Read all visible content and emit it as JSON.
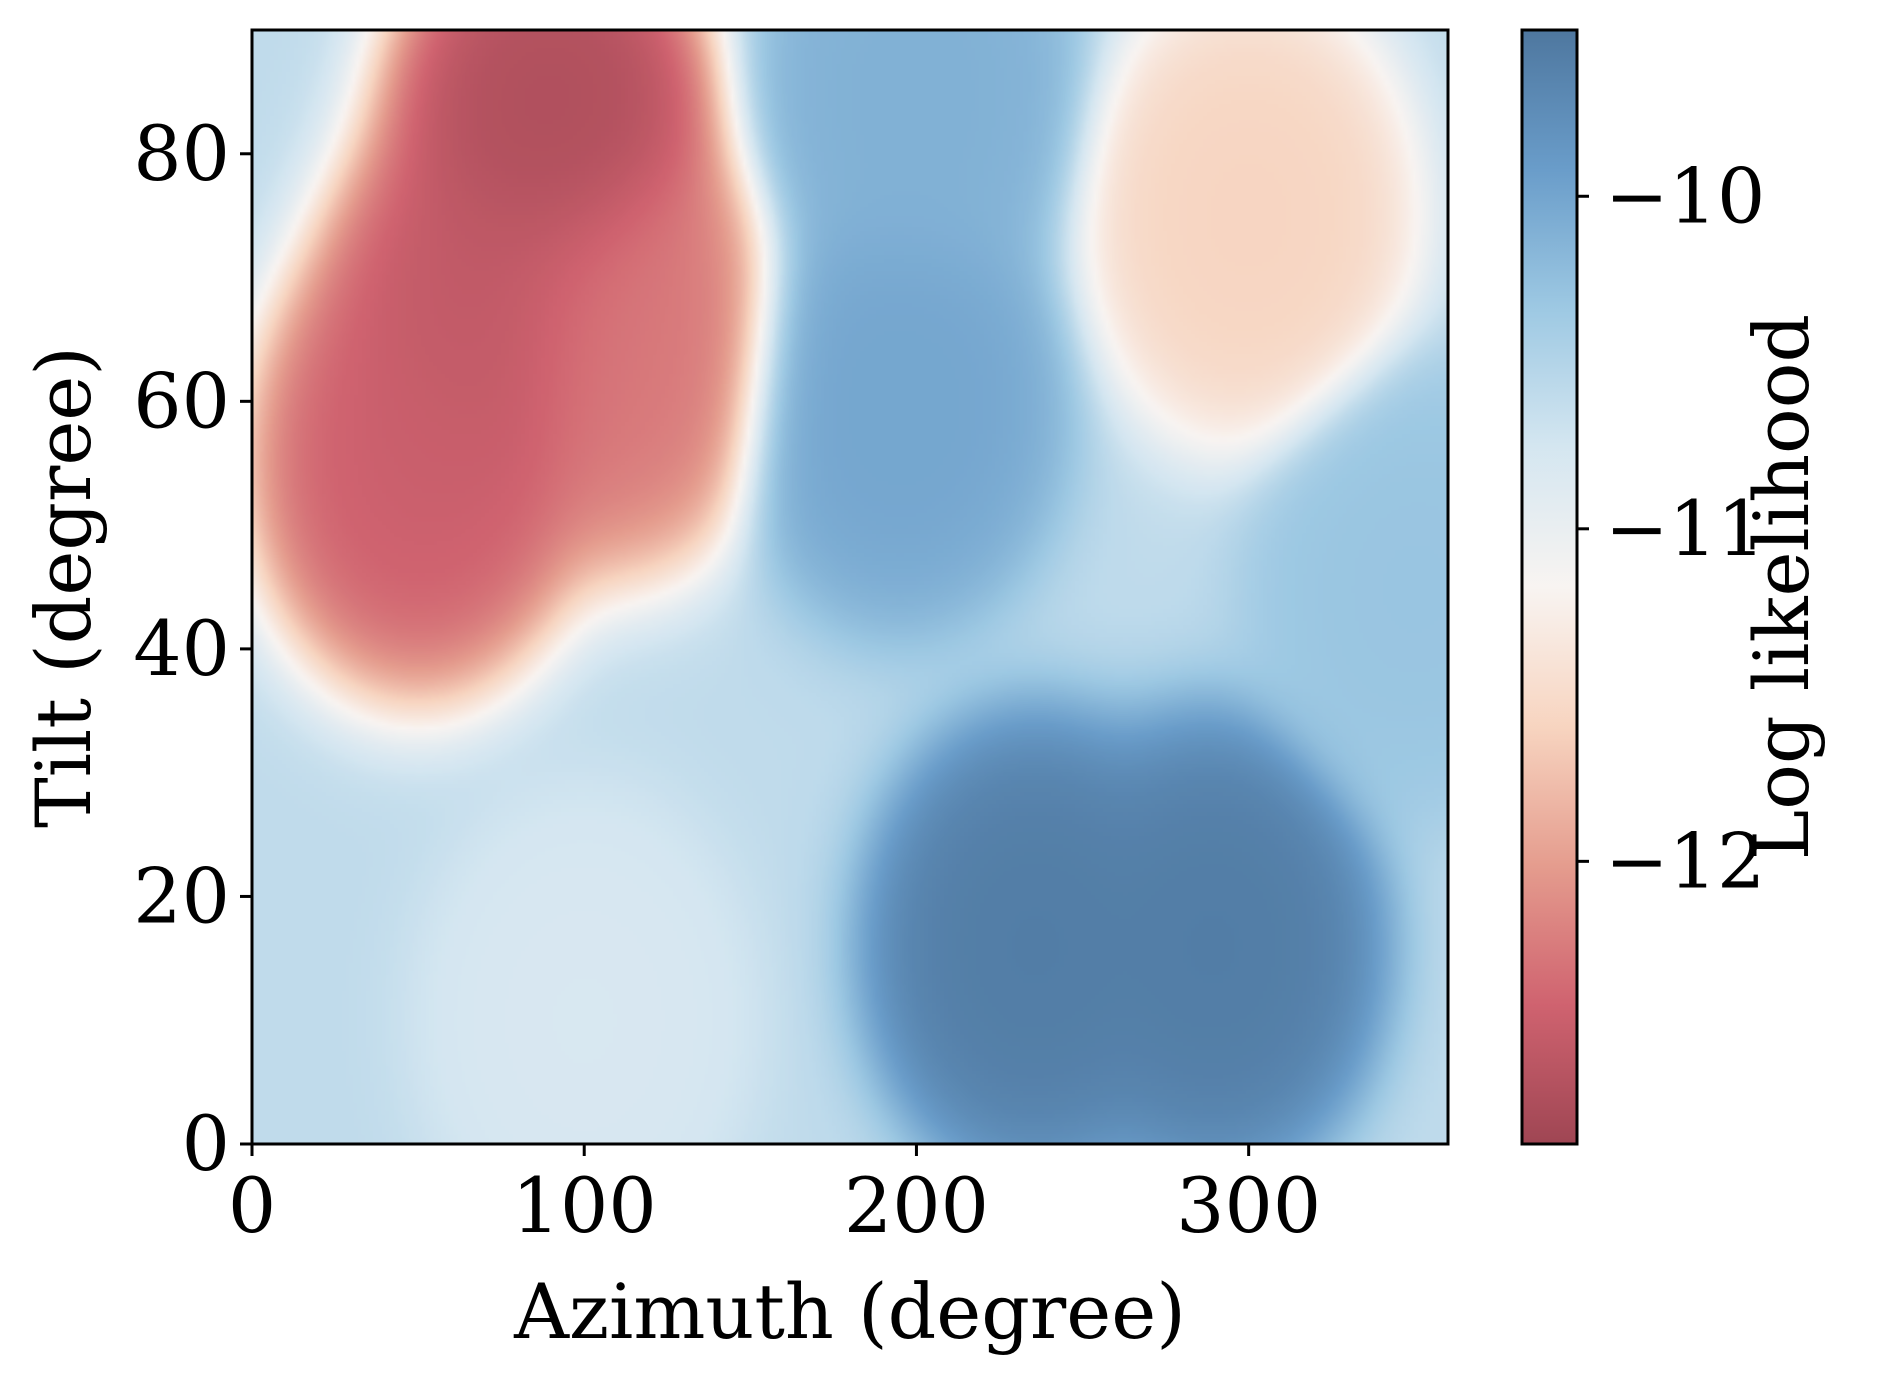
{
  "chart_data": {
    "type": "heatmap",
    "xlabel": "Azimuth (degree)",
    "ylabel": "Tilt (degree)",
    "xlim": [
      0,
      360
    ],
    "ylim": [
      0,
      90
    ],
    "xticks": [
      {
        "value": 0,
        "label": "0"
      },
      {
        "value": 100,
        "label": "100"
      },
      {
        "value": 200,
        "label": "200"
      },
      {
        "value": 300,
        "label": "300"
      }
    ],
    "yticks": [
      {
        "value": 0,
        "label": "0"
      },
      {
        "value": 20,
        "label": "20"
      },
      {
        "value": 40,
        "label": "40"
      },
      {
        "value": 60,
        "label": "60"
      },
      {
        "value": 80,
        "label": "80"
      }
    ],
    "colorbar": {
      "label": "Log likelihood",
      "range": [
        -12.85,
        -9.5
      ],
      "colormap": "RdBu",
      "ticks": [
        {
          "value": -10,
          "label": "−10"
        },
        {
          "value": -11,
          "label": "−11"
        },
        {
          "value": -12,
          "label": "−12"
        }
      ],
      "colors": [
        "#8e2535",
        "#c74756",
        "#e08b7a",
        "#f6cdb5",
        "#f7f2ef",
        "#cde2ee",
        "#8cbfde",
        "#4f8bc0",
        "#2f5f8e"
      ]
    },
    "hotspots": [
      {
        "azimuth": 235,
        "tilt": 16,
        "value": -9.55
      },
      {
        "azimuth": 290,
        "tilt": 16,
        "value": -9.55
      },
      {
        "azimuth": 195,
        "tilt": 60,
        "value": -10.0
      },
      {
        "azimuth": 200,
        "tilt": 85,
        "value": -10.1
      },
      {
        "azimuth": 350,
        "tilt": 45,
        "value": -10.3
      },
      {
        "azimuth": 90,
        "tilt": 82,
        "value": -12.75
      },
      {
        "azimuth": 70,
        "tilt": 66,
        "value": -12.6
      },
      {
        "azimuth": 50,
        "tilt": 55,
        "value": -12.5
      },
      {
        "azimuth": 110,
        "tilt": 65,
        "value": -12.3
      },
      {
        "azimuth": 300,
        "tilt": 75,
        "value": -11.6
      },
      {
        "azimuth": 100,
        "tilt": 10,
        "value": -10.8
      }
    ]
  }
}
